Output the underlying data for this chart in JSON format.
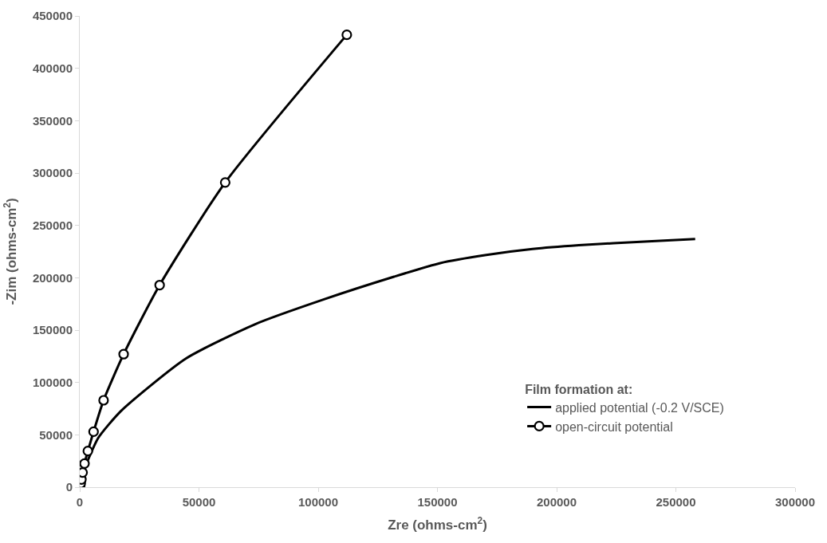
{
  "chart_data": {
    "type": "line",
    "xlabel": "Zre (ohms-cm$^{2}$)",
    "ylabel": "-Zim (ohms-cm$^{2}$)",
    "legend_title": "Film formation at:",
    "xlim": [
      0,
      300000
    ],
    "xticks": [
      0,
      50000,
      100000,
      150000,
      200000,
      250000,
      300000
    ],
    "ylim": [
      0,
      450000
    ],
    "yticks": [
      0,
      50000,
      100000,
      150000,
      200000,
      250000,
      300000,
      350000,
      400000,
      450000
    ],
    "grid": false,
    "legend": "bottom right",
    "line_style": "solid",
    "series": [
      {
        "name": "applied potential (-0.2 V/SCE)",
        "color": "#000000",
        "marker": "none",
        "x": [
          0,
          970,
          2900,
          7750,
          17400,
          44600,
          73600,
          102700,
          131800,
          151200,
          170500,
          189900,
          209300,
          238400,
          258100
        ],
        "values": [
          0,
          12000,
          23000,
          47000,
          73000,
          123000,
          155700,
          179600,
          201000,
          214000,
          221700,
          227400,
          231000,
          234800,
          237000
        ]
      },
      {
        "name": "open-circuit potential",
        "color": "#000000",
        "marker": "circle",
        "x": [
          0,
          130,
          400,
          700,
          1200,
          2000,
          3400,
          5800,
          10000,
          18400,
          33500,
          61000,
          112000
        ],
        "values": [
          0,
          1200,
          3600,
          7400,
          14000,
          22600,
          34500,
          53000,
          83000,
          127000,
          193000,
          291000,
          432000
        ]
      }
    ]
  }
}
